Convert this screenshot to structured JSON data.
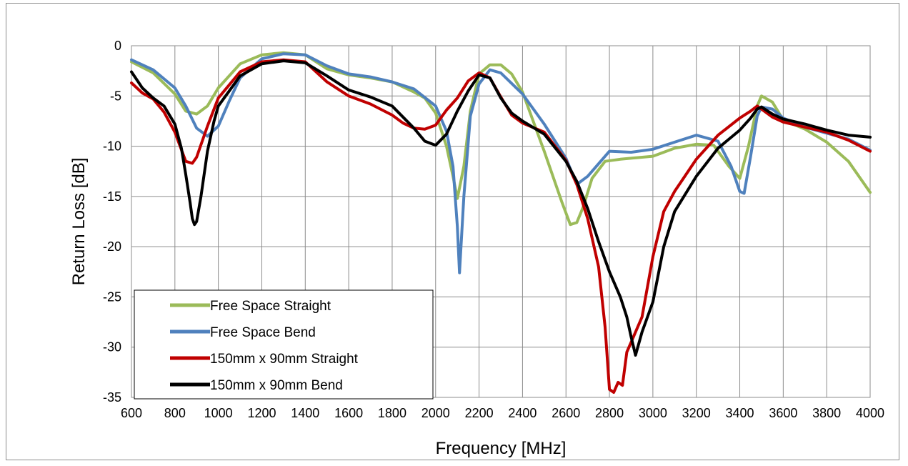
{
  "chart_data": {
    "type": "line",
    "title": "",
    "xlabel": "Frequency [MHz]",
    "ylabel": "Return Loss [dB]",
    "xlim": [
      600,
      4000
    ],
    "ylim": [
      -35,
      0
    ],
    "xticks": [
      600,
      800,
      1000,
      1200,
      1400,
      1600,
      1800,
      2000,
      2200,
      2400,
      2600,
      2800,
      3000,
      3200,
      3400,
      3600,
      3800,
      4000
    ],
    "yticks": [
      0,
      -5,
      -10,
      -15,
      -20,
      -25,
      -30,
      -35
    ],
    "grid": true,
    "legend_position": "bottom-left",
    "series": [
      {
        "name": "Free Space Straight",
        "color": "#9BBB59",
        "x": [
          600,
          700,
          800,
          850,
          900,
          950,
          1000,
          1100,
          1200,
          1300,
          1400,
          1500,
          1600,
          1700,
          1800,
          1900,
          1950,
          2000,
          2050,
          2080,
          2100,
          2130,
          2160,
          2200,
          2250,
          2300,
          2350,
          2400,
          2500,
          2580,
          2620,
          2650,
          2680,
          2720,
          2780,
          2850,
          3000,
          3100,
          3200,
          3280,
          3350,
          3400,
          3440,
          3480,
          3500,
          3550,
          3600,
          3700,
          3800,
          3900,
          4000
        ],
        "y": [
          -1.6,
          -2.7,
          -4.8,
          -6.5,
          -6.8,
          -6.0,
          -4.2,
          -1.8,
          -0.9,
          -0.7,
          -0.9,
          -2.3,
          -2.9,
          -3.2,
          -3.6,
          -4.6,
          -5.2,
          -6.7,
          -10.0,
          -13.0,
          -15.2,
          -12.0,
          -6.5,
          -2.8,
          -1.9,
          -1.9,
          -2.8,
          -4.6,
          -10.5,
          -15.5,
          -17.8,
          -17.6,
          -16.0,
          -13.2,
          -11.5,
          -11.3,
          -11.0,
          -10.2,
          -9.8,
          -9.9,
          -12.0,
          -13.2,
          -10.0,
          -6.0,
          -5.0,
          -5.6,
          -7.4,
          -8.3,
          -9.6,
          -11.5,
          -14.6
        ]
      },
      {
        "name": "Free Space Bend",
        "color": "#4F81BD",
        "x": [
          600,
          700,
          800,
          850,
          900,
          950,
          1000,
          1050,
          1100,
          1200,
          1300,
          1400,
          1500,
          1600,
          1700,
          1800,
          1900,
          2000,
          2050,
          2080,
          2100,
          2110,
          2130,
          2160,
          2200,
          2250,
          2300,
          2400,
          2500,
          2600,
          2650,
          2700,
          2800,
          2900,
          3000,
          3100,
          3200,
          3300,
          3360,
          3400,
          3420,
          3450,
          3480,
          3500,
          3550,
          3600,
          3700,
          3800,
          3900,
          4000
        ],
        "y": [
          -1.4,
          -2.4,
          -4.2,
          -6.0,
          -8.2,
          -9.0,
          -8.0,
          -5.5,
          -3.2,
          -1.3,
          -0.8,
          -0.9,
          -2.0,
          -2.8,
          -3.1,
          -3.6,
          -4.3,
          -6.0,
          -8.5,
          -12.0,
          -18.0,
          -22.6,
          -15.0,
          -7.0,
          -3.8,
          -2.4,
          -2.7,
          -4.8,
          -7.8,
          -11.2,
          -13.8,
          -13.0,
          -10.5,
          -10.6,
          -10.3,
          -9.6,
          -8.9,
          -9.5,
          -12.0,
          -14.5,
          -14.7,
          -11.0,
          -7.0,
          -6.1,
          -6.3,
          -7.2,
          -8.1,
          -8.7,
          -9.3,
          -10.4
        ]
      },
      {
        "name": "150mm x 90mm Straight",
        "color": "#C00000",
        "x": [
          600,
          650,
          700,
          750,
          800,
          850,
          880,
          900,
          950,
          1000,
          1100,
          1200,
          1300,
          1400,
          1500,
          1600,
          1700,
          1800,
          1850,
          1900,
          1950,
          2000,
          2050,
          2100,
          2150,
          2200,
          2250,
          2300,
          2350,
          2400,
          2500,
          2600,
          2650,
          2700,
          2750,
          2780,
          2800,
          2820,
          2840,
          2860,
          2880,
          2900,
          2950,
          3000,
          3050,
          3100,
          3200,
          3300,
          3400,
          3450,
          3480,
          3500,
          3550,
          3600,
          3700,
          3800,
          3900,
          4000
        ],
        "y": [
          -3.7,
          -4.7,
          -5.3,
          -6.6,
          -8.6,
          -11.5,
          -11.7,
          -11.1,
          -8.0,
          -5.2,
          -2.6,
          -1.6,
          -1.4,
          -1.6,
          -3.6,
          -5.0,
          -5.8,
          -6.9,
          -7.7,
          -8.2,
          -8.3,
          -7.9,
          -6.4,
          -5.2,
          -3.5,
          -2.7,
          -3.2,
          -5.1,
          -6.9,
          -7.7,
          -8.6,
          -11.4,
          -13.8,
          -17.2,
          -22.0,
          -28.0,
          -34.2,
          -34.5,
          -33.5,
          -33.8,
          -30.5,
          -29.5,
          -27.0,
          -21.0,
          -16.5,
          -14.5,
          -11.3,
          -8.9,
          -7.2,
          -6.5,
          -6.0,
          -6.3,
          -7.1,
          -7.6,
          -8.1,
          -8.6,
          -9.4,
          -10.5
        ]
      },
      {
        "name": "150mm x 90mm Bend",
        "color": "#000000",
        "x": [
          600,
          650,
          700,
          750,
          800,
          830,
          850,
          870,
          880,
          890,
          900,
          920,
          950,
          980,
          1000,
          1050,
          1100,
          1200,
          1300,
          1400,
          1500,
          1600,
          1700,
          1800,
          1900,
          1950,
          2000,
          2050,
          2100,
          2150,
          2200,
          2250,
          2300,
          2350,
          2400,
          2500,
          2600,
          2650,
          2700,
          2750,
          2800,
          2850,
          2880,
          2900,
          2920,
          2950,
          3000,
          3050,
          3100,
          3200,
          3300,
          3400,
          3450,
          3480,
          3500,
          3550,
          3600,
          3700,
          3800,
          3900,
          4000
        ],
        "y": [
          -2.6,
          -4.2,
          -5.2,
          -6.0,
          -7.8,
          -10.2,
          -12.8,
          -15.6,
          -17.2,
          -17.8,
          -17.5,
          -15.0,
          -10.5,
          -7.5,
          -6.0,
          -4.5,
          -3.0,
          -1.8,
          -1.5,
          -1.7,
          -3.0,
          -4.4,
          -5.1,
          -6.0,
          -8.2,
          -9.5,
          -9.9,
          -8.8,
          -6.5,
          -4.5,
          -2.9,
          -3.2,
          -5.2,
          -6.7,
          -7.5,
          -8.8,
          -11.5,
          -13.5,
          -16.2,
          -19.5,
          -22.5,
          -25.0,
          -27.0,
          -29.0,
          -30.8,
          -28.5,
          -25.5,
          -20.0,
          -16.5,
          -13.0,
          -10.2,
          -8.4,
          -7.2,
          -6.3,
          -6.1,
          -6.8,
          -7.3,
          -7.8,
          -8.4,
          -8.9,
          -9.1
        ]
      }
    ]
  }
}
